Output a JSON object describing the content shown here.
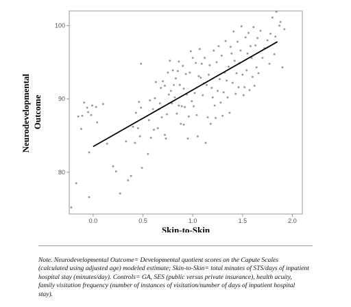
{
  "chart_data": {
    "type": "scatter",
    "xlabel": "Skin-to-Skin",
    "ylabel_lines": [
      "Neurodevelopmental",
      "Outcome"
    ],
    "xlim": [
      -0.24,
      2.1
    ],
    "ylim": [
      74.3,
      102
    ],
    "x_ticks": [
      0.0,
      0.5,
      1.0,
      1.5,
      2.0
    ],
    "x_tick_labels": [
      "0.0",
      "0.5",
      "1.0",
      "1.5",
      "2.0"
    ],
    "y_ticks": [
      80,
      90,
      100
    ],
    "y_tick_labels": [
      "80",
      "90",
      "100"
    ],
    "grid": false,
    "legend": "none",
    "fit_line": {
      "x": [
        0.0,
        1.85
      ],
      "y": [
        83.5,
        97.8
      ]
    },
    "point_color": "#8a8a8a",
    "line_color": "#000000",
    "points": [
      [
        -0.22,
        75.2
      ],
      [
        -0.17,
        78.5
      ],
      [
        -0.15,
        87.6
      ],
      [
        -0.12,
        85.9
      ],
      [
        -0.11,
        87.7
      ],
      [
        -0.09,
        89.5
      ],
      [
        -0.06,
        88.8
      ],
      [
        -0.05,
        88.2
      ],
      [
        -0.04,
        82.7
      ],
      [
        -0.04,
        76.6
      ],
      [
        -0.02,
        87.8
      ],
      [
        -0.01,
        89.1
      ],
      [
        0.03,
        88.9
      ],
      [
        0.04,
        86.8
      ],
      [
        0.1,
        89.3
      ],
      [
        0.14,
        83.9
      ],
      [
        0.2,
        80.8
      ],
      [
        0.23,
        80.1
      ],
      [
        0.27,
        77.1
      ],
      [
        0.33,
        84.2
      ],
      [
        0.35,
        78.9
      ],
      [
        0.38,
        79.5
      ],
      [
        0.4,
        86.2
      ],
      [
        0.42,
        84.0
      ],
      [
        0.43,
        88.1
      ],
      [
        0.45,
        86.0
      ],
      [
        0.46,
        89.6
      ],
      [
        0.47,
        84.9
      ],
      [
        0.48,
        88.8
      ],
      [
        0.48,
        94.8
      ],
      [
        0.49,
        80.6
      ],
      [
        0.55,
        82.5
      ],
      [
        0.56,
        87.1
      ],
      [
        0.57,
        89.8
      ],
      [
        0.58,
        84.7
      ],
      [
        0.6,
        88.6
      ],
      [
        0.61,
        85.8
      ],
      [
        0.62,
        90.1
      ],
      [
        0.63,
        92.3
      ],
      [
        0.65,
        86.0
      ],
      [
        0.66,
        88.6
      ],
      [
        0.67,
        89.4
      ],
      [
        0.68,
        91.5
      ],
      [
        0.69,
        87.5
      ],
      [
        0.7,
        92.4
      ],
      [
        0.72,
        91.8
      ],
      [
        0.72,
        85.1
      ],
      [
        0.73,
        84.6
      ],
      [
        0.74,
        87.9
      ],
      [
        0.75,
        93.6
      ],
      [
        0.76,
        90.6
      ],
      [
        0.77,
        95.2
      ],
      [
        0.78,
        91.1
      ],
      [
        0.79,
        89.4
      ],
      [
        0.8,
        93.9
      ],
      [
        0.81,
        91.9
      ],
      [
        0.82,
        90.2
      ],
      [
        0.83,
        92.8
      ],
      [
        0.84,
        88.0
      ],
      [
        0.85,
        93.8
      ],
      [
        0.86,
        89.1
      ],
      [
        0.86,
        95.1
      ],
      [
        0.87,
        91.9
      ],
      [
        0.88,
        86.6
      ],
      [
        0.89,
        89.0
      ],
      [
        0.9,
        94.5
      ],
      [
        0.91,
        91.4
      ],
      [
        0.91,
        86.5
      ],
      [
        0.92,
        88.9
      ],
      [
        0.93,
        93.4
      ],
      [
        0.94,
        90.6
      ],
      [
        0.95,
        84.6
      ],
      [
        0.96,
        87.6
      ],
      [
        0.97,
        93.6
      ],
      [
        0.98,
        96.5
      ],
      [
        0.99,
        89.7
      ],
      [
        1.0,
        95.6
      ],
      [
        1.01,
        89.0
      ],
      [
        1.02,
        90.8
      ],
      [
        1.03,
        94.9
      ],
      [
        1.04,
        87.8
      ],
      [
        1.05,
        84.9
      ],
      [
        1.06,
        93.1
      ],
      [
        1.07,
        96.8
      ],
      [
        1.08,
        92.9
      ],
      [
        1.09,
        94.8
      ],
      [
        1.1,
        90.5
      ],
      [
        1.11,
        92.1
      ],
      [
        1.12,
        95.6
      ],
      [
        1.13,
        84.0
      ],
      [
        1.14,
        91.9
      ],
      [
        1.15,
        87.5
      ],
      [
        1.16,
        93.3
      ],
      [
        1.17,
        94.6
      ],
      [
        1.18,
        86.6
      ],
      [
        1.19,
        91.5
      ],
      [
        1.2,
        90.2
      ],
      [
        1.21,
        96.6
      ],
      [
        1.22,
        89.1
      ],
      [
        1.23,
        87.4
      ],
      [
        1.24,
        95.0
      ],
      [
        1.25,
        91.1
      ],
      [
        1.26,
        97.2
      ],
      [
        1.27,
        92.7
      ],
      [
        1.28,
        89.5
      ],
      [
        1.29,
        95.9
      ],
      [
        1.3,
        87.7
      ],
      [
        1.31,
        90.9
      ],
      [
        1.32,
        93.6
      ],
      [
        1.33,
        97.9
      ],
      [
        1.34,
        92.5
      ],
      [
        1.35,
        90.2
      ],
      [
        1.36,
        94.4
      ],
      [
        1.37,
        88.1
      ],
      [
        1.38,
        97.1
      ],
      [
        1.39,
        96.2
      ],
      [
        1.4,
        92.2
      ],
      [
        1.41,
        99.2
      ],
      [
        1.42,
        95.2
      ],
      [
        1.43,
        90.7
      ],
      [
        1.44,
        93.5
      ],
      [
        1.45,
        97.8
      ],
      [
        1.46,
        91.6
      ],
      [
        1.47,
        94.9
      ],
      [
        1.48,
        96.6
      ],
      [
        1.49,
        99.9
      ],
      [
        1.5,
        93.3
      ],
      [
        1.51,
        90.5
      ],
      [
        1.52,
        91.6
      ],
      [
        1.53,
        98.4
      ],
      [
        1.54,
        93.9
      ],
      [
        1.55,
        96.2
      ],
      [
        1.56,
        99.0
      ],
      [
        1.57,
        91.2
      ],
      [
        1.58,
        97.2
      ],
      [
        1.59,
        95.6
      ],
      [
        1.6,
        93.0
      ],
      [
        1.61,
        99.8
      ],
      [
        1.62,
        91.8
      ],
      [
        1.63,
        97.3
      ],
      [
        1.64,
        94.3
      ],
      [
        1.65,
        98.3
      ],
      [
        1.66,
        93.5
      ],
      [
        1.68,
        99.3
      ],
      [
        1.7,
        95.6
      ],
      [
        1.72,
        96.9
      ],
      [
        1.75,
        98.0
      ],
      [
        1.77,
        94.8
      ],
      [
        1.78,
        98.9
      ],
      [
        1.8,
        101.1
      ],
      [
        1.82,
        96.1
      ],
      [
        1.83,
        98.5
      ],
      [
        1.84,
        101.9
      ],
      [
        1.87,
        100.0
      ],
      [
        1.88,
        100.5
      ],
      [
        1.9,
        94.3
      ],
      [
        1.92,
        99.5
      ]
    ]
  },
  "note": "Note. Neurodevelopmental Outcome= Developmental quotient scores on the Capute Scales (calculated using adjusted age) modeled estimate; Skin-to-Skin= total minutes of STS/days of inpatient hospital stay (minutes/day). Controls= GA, SES (public versus private insurance), health acuity, family visitation frequency (number of instances of visitation/number of days of inpatient hospital stay)."
}
